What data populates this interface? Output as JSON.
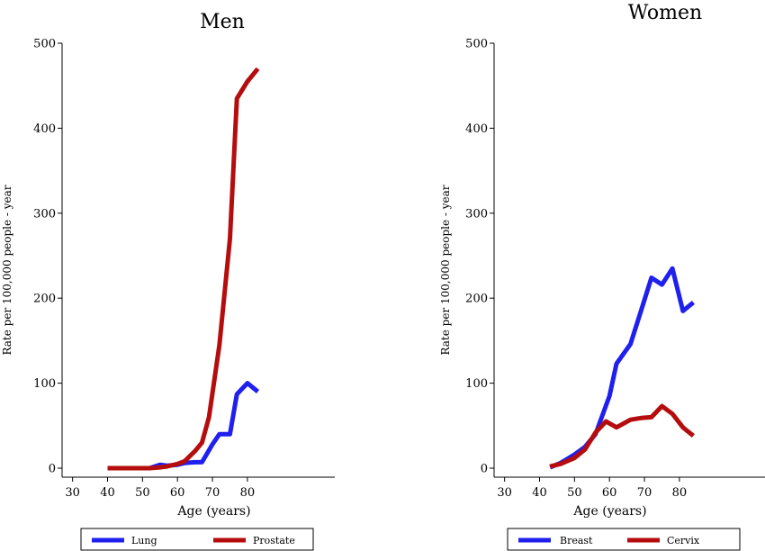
{
  "chart_data": [
    {
      "type": "line",
      "title": "Men",
      "xlabel": "Age (years)",
      "ylabel": "Rate per 100,000 people - year",
      "xlim": [
        27,
        105
      ],
      "ylim": [
        0,
        500
      ],
      "xticks": [
        30,
        40,
        50,
        60,
        70,
        80
      ],
      "yticks": [
        0,
        100,
        200,
        300,
        400,
        500
      ],
      "grid": false,
      "legend_position": "bottom",
      "series": [
        {
          "name": "Lung",
          "color": "#1f1fef",
          "points": [
            [
              40,
              0
            ],
            [
              45,
              0
            ],
            [
              50,
              0
            ],
            [
              52,
              0
            ],
            [
              55,
              4
            ],
            [
              57,
              3
            ],
            [
              60,
              4
            ],
            [
              62,
              6
            ],
            [
              65,
              7
            ],
            [
              67,
              7
            ],
            [
              70,
              28
            ],
            [
              72,
              40
            ],
            [
              75,
              40
            ],
            [
              77,
              87
            ],
            [
              80,
              100
            ],
            [
              83,
              90
            ]
          ]
        },
        {
          "name": "Prostate",
          "color": "#b50d0d",
          "points": [
            [
              40,
              0
            ],
            [
              45,
              0
            ],
            [
              50,
              0
            ],
            [
              52,
              0
            ],
            [
              55,
              1
            ],
            [
              57,
              2
            ],
            [
              60,
              5
            ],
            [
              62,
              8
            ],
            [
              65,
              20
            ],
            [
              67,
              30
            ],
            [
              69,
              60
            ],
            [
              72,
              145
            ],
            [
              75,
              270
            ],
            [
              77,
              435
            ],
            [
              80,
              455
            ],
            [
              83,
              470
            ]
          ]
        }
      ]
    },
    {
      "type": "line",
      "title": "Women",
      "xlabel": "Age (years)",
      "ylabel": "Rate per 100,000 people - year",
      "xlim": [
        27,
        105
      ],
      "ylim": [
        0,
        500
      ],
      "xticks": [
        30,
        40,
        50,
        60,
        70,
        80
      ],
      "yticks": [
        0,
        100,
        200,
        300,
        400,
        500
      ],
      "grid": false,
      "legend_position": "bottom",
      "series": [
        {
          "name": "Breast",
          "color": "#1f1fef",
          "points": [
            [
              43,
              1
            ],
            [
              46,
              6
            ],
            [
              50,
              16
            ],
            [
              53,
              25
            ],
            [
              56,
              40
            ],
            [
              60,
              85
            ],
            [
              62,
              123
            ],
            [
              66,
              146
            ],
            [
              69,
              185
            ],
            [
              72,
              224
            ],
            [
              75,
              216
            ],
            [
              78,
              235
            ],
            [
              81,
              185
            ],
            [
              84,
              195
            ]
          ]
        },
        {
          "name": "Cervix",
          "color": "#b50d0d",
          "points": [
            [
              43,
              2
            ],
            [
              46,
              5
            ],
            [
              50,
              12
            ],
            [
              53,
              22
            ],
            [
              56,
              42
            ],
            [
              59,
              55
            ],
            [
              62,
              48
            ],
            [
              66,
              57
            ],
            [
              69,
              59
            ],
            [
              72,
              60
            ],
            [
              75,
              73
            ],
            [
              78,
              64
            ],
            [
              81,
              48
            ],
            [
              84,
              38
            ]
          ]
        }
      ]
    }
  ]
}
